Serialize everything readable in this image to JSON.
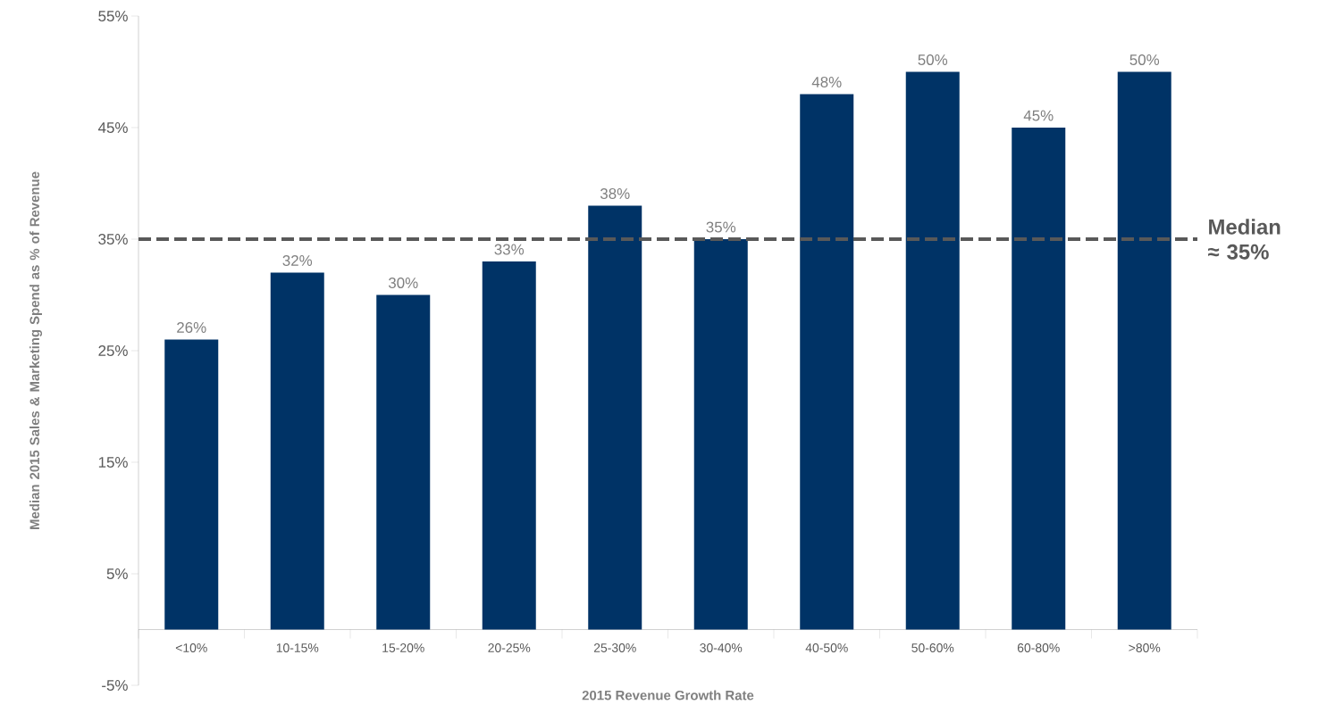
{
  "chart_data": {
    "type": "bar",
    "xlabel": "2015 Revenue Growth Rate",
    "ylabel": "Median 2015 Sales & Marketing Spend as % of Revenue",
    "categories": [
      "<10%",
      "10-15%",
      "15-20%",
      "20-25%",
      "25-30%",
      "30-40%",
      "40-50%",
      "50-60%",
      "60-80%",
      ">80%"
    ],
    "values": [
      26,
      32,
      30,
      33,
      38,
      35,
      48,
      50,
      45,
      50
    ],
    "value_labels": [
      "26%",
      "32%",
      "30%",
      "33%",
      "38%",
      "35%",
      "48%",
      "50%",
      "45%",
      "50%"
    ],
    "color": "#003366",
    "ylim": [
      -5,
      55
    ],
    "yticks": [
      {
        "value": -5,
        "label": "-5%"
      },
      {
        "value": 5,
        "label": "5%"
      },
      {
        "value": 15,
        "label": "15%"
      },
      {
        "value": 25,
        "label": "25%"
      },
      {
        "value": 35,
        "label": "35%"
      },
      {
        "value": 45,
        "label": "45%"
      },
      {
        "value": 55,
        "label": "55%"
      }
    ],
    "ref_lines": [
      {
        "axis": "y",
        "value": 35,
        "label": "Median ≈ 35%",
        "color": "#595959",
        "line_style": "dashed"
      }
    ]
  }
}
